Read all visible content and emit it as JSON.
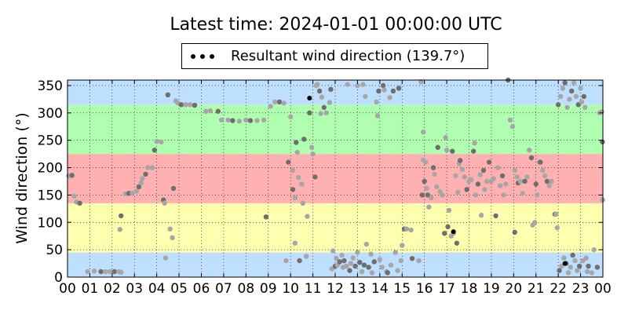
{
  "chart_data": {
    "type": "scatter",
    "title": "Latest time: 2024-01-01 00:00:00 UTC",
    "xlabel": "",
    "ylabel": "Wind direction (°)",
    "xlim": [
      0,
      24
    ],
    "ylim": [
      0,
      360
    ],
    "grid": true,
    "legend": {
      "placement": "top-center",
      "label": "Resultant wind direction (139.7°)",
      "marker": "black dots"
    },
    "x_ticks": [
      0,
      1,
      2,
      3,
      4,
      5,
      6,
      7,
      8,
      9,
      10,
      11,
      12,
      13,
      14,
      15,
      16,
      17,
      18,
      19,
      20,
      21,
      22,
      23,
      24
    ],
    "x_tick_labels": [
      "00",
      "01",
      "02",
      "03",
      "04",
      "05",
      "06",
      "07",
      "08",
      "09",
      "10",
      "11",
      "12",
      "13",
      "14",
      "15",
      "16",
      "17",
      "18",
      "19",
      "20",
      "21",
      "22",
      "23",
      "00"
    ],
    "y_ticks": [
      0,
      50,
      100,
      150,
      200,
      250,
      300,
      350
    ],
    "y_tick_labels": [
      "0",
      "50",
      "100",
      "150",
      "200",
      "250",
      "300",
      "350"
    ],
    "bands": [
      {
        "from": 0,
        "to": 45,
        "color": "#bfdfff"
      },
      {
        "from": 45,
        "to": 135,
        "color": "#ffffb0"
      },
      {
        "from": 135,
        "to": 225,
        "color": "#ffb0b0"
      },
      {
        "from": 225,
        "to": 315,
        "color": "#b0ffb0"
      },
      {
        "from": 315,
        "to": 360,
        "color": "#bfdfff"
      }
    ],
    "point_colors": {
      "light": "#a6a6a6",
      "dark": "#6e6e6e"
    },
    "series": [
      {
        "points": [
          [
            0.05,
            185
          ],
          [
            0.2,
            186
          ],
          [
            0.3,
            148
          ],
          [
            0.4,
            137
          ],
          [
            0.55,
            135
          ],
          [
            0.9,
            10
          ],
          [
            1.2,
            11
          ],
          [
            1.5,
            10
          ],
          [
            1.7,
            10
          ],
          [
            1.9,
            10
          ],
          [
            2.1,
            10
          ],
          [
            2.3,
            10
          ],
          [
            2.4,
            9
          ],
          [
            2.4,
            112
          ],
          [
            2.35,
            87
          ],
          [
            2.6,
            152
          ],
          [
            2.75,
            153
          ],
          [
            2.9,
            153
          ],
          [
            3.1,
            157
          ],
          [
            3.2,
            165
          ],
          [
            3.3,
            172
          ],
          [
            3.35,
            180
          ],
          [
            3.5,
            188
          ],
          [
            3.6,
            200
          ],
          [
            3.8,
            200
          ],
          [
            3.9,
            232
          ],
          [
            4.0,
            248
          ],
          [
            4.2,
            247
          ],
          [
            4.3,
            141
          ],
          [
            4.35,
            135
          ],
          [
            4.4,
            35
          ],
          [
            4.5,
            333
          ],
          [
            4.6,
            88
          ],
          [
            4.7,
            72
          ],
          [
            4.75,
            162
          ],
          [
            4.85,
            322
          ],
          [
            4.95,
            318
          ],
          [
            5.1,
            315
          ],
          [
            5.3,
            315
          ],
          [
            5.5,
            315
          ],
          [
            5.7,
            314
          ],
          [
            6.2,
            303
          ],
          [
            6.4,
            304
          ],
          [
            6.75,
            303
          ],
          [
            6.9,
            287
          ],
          [
            7.2,
            287
          ],
          [
            7.4,
            286
          ],
          [
            7.7,
            285
          ],
          [
            8.0,
            287
          ],
          [
            8.2,
            286
          ],
          [
            8.5,
            286
          ],
          [
            8.8,
            287
          ],
          [
            8.9,
            110
          ],
          [
            9.1,
            312
          ],
          [
            9.3,
            320
          ],
          [
            9.5,
            320
          ],
          [
            9.7,
            318
          ],
          [
            9.8,
            30
          ],
          [
            9.9,
            210
          ],
          [
            10.0,
            293
          ],
          [
            10.1,
            195
          ],
          [
            10.1,
            160
          ],
          [
            10.2,
            145
          ],
          [
            10.2,
            62
          ],
          [
            10.25,
            246
          ],
          [
            10.3,
            228
          ],
          [
            10.35,
            182
          ],
          [
            10.4,
            30
          ],
          [
            10.5,
            170
          ],
          [
            10.55,
            135
          ],
          [
            10.6,
            252
          ],
          [
            10.7,
            38
          ],
          [
            10.75,
            111
          ],
          [
            10.85,
            300
          ],
          [
            10.95,
            237
          ],
          [
            11.0,
            225
          ],
          [
            11.1,
            183
          ],
          [
            11.15,
            350
          ],
          [
            11.2,
            352
          ],
          [
            11.3,
            340
          ],
          [
            11.35,
            299
          ],
          [
            11.4,
            329
          ],
          [
            11.5,
            310
          ],
          [
            11.6,
            300
          ],
          [
            11.75,
            319
          ],
          [
            11.8,
            343
          ],
          [
            11.85,
            15
          ],
          [
            11.9,
            48
          ],
          [
            12.0,
            20
          ],
          [
            12.05,
            34
          ],
          [
            12.1,
            22
          ],
          [
            12.2,
            28
          ],
          [
            12.3,
            40
          ],
          [
            12.35,
            18
          ],
          [
            12.4,
            30
          ],
          [
            12.5,
            20
          ],
          [
            12.55,
            352
          ],
          [
            12.65,
            12
          ],
          [
            12.7,
            25
          ],
          [
            12.8,
            35
          ],
          [
            12.9,
            20
          ],
          [
            13.0,
            45
          ],
          [
            13.0,
            350
          ],
          [
            13.1,
            27
          ],
          [
            13.2,
            10
          ],
          [
            13.25,
            352
          ],
          [
            13.3,
            22
          ],
          [
            13.35,
            330
          ],
          [
            13.4,
            60
          ],
          [
            13.5,
            18
          ],
          [
            13.6,
            42
          ],
          [
            13.65,
            8
          ],
          [
            13.75,
            28
          ],
          [
            13.85,
            320
          ],
          [
            13.9,
            295
          ],
          [
            13.95,
            340
          ],
          [
            14.0,
            32
          ],
          [
            14.1,
            18
          ],
          [
            14.15,
            350
          ],
          [
            14.2,
            342
          ],
          [
            14.3,
            10
          ],
          [
            14.35,
            8
          ],
          [
            14.45,
            328
          ],
          [
            14.5,
            22
          ],
          [
            14.6,
            340
          ],
          [
            14.7,
            45
          ],
          [
            14.8,
            12
          ],
          [
            14.85,
            345
          ],
          [
            14.95,
            30
          ],
          [
            15.0,
            58
          ],
          [
            15.1,
            88
          ],
          [
            15.2,
            88
          ],
          [
            15.4,
            86
          ],
          [
            15.45,
            34
          ],
          [
            15.75,
            30
          ],
          [
            15.85,
            357
          ],
          [
            15.9,
            150
          ],
          [
            15.95,
            214
          ],
          [
            15.95,
            265
          ],
          [
            16.0,
            175
          ],
          [
            16.05,
            210
          ],
          [
            16.1,
            162
          ],
          [
            16.15,
            150
          ],
          [
            16.2,
            128
          ],
          [
            16.3,
            145
          ],
          [
            16.4,
            200
          ],
          [
            16.45,
            188
          ],
          [
            16.55,
            165
          ],
          [
            16.6,
            237
          ],
          [
            16.7,
            156
          ],
          [
            16.8,
            150
          ],
          [
            16.9,
            80
          ],
          [
            16.95,
            255
          ],
          [
            17.0,
            232
          ],
          [
            17.05,
            92
          ],
          [
            17.1,
            122
          ],
          [
            17.2,
            75
          ],
          [
            17.25,
            230
          ],
          [
            17.3,
            80
          ],
          [
            17.4,
            185
          ],
          [
            17.45,
            62
          ],
          [
            17.5,
            155
          ],
          [
            17.55,
            207
          ],
          [
            17.6,
            213
          ],
          [
            17.7,
            197
          ],
          [
            17.8,
            183
          ],
          [
            17.9,
            160
          ],
          [
            18.0,
            175
          ],
          [
            18.1,
            178
          ],
          [
            18.2,
            230
          ],
          [
            18.25,
            245
          ],
          [
            18.3,
            150
          ],
          [
            18.4,
            170
          ],
          [
            18.5,
            187
          ],
          [
            18.55,
            113
          ],
          [
            18.65,
            195
          ],
          [
            18.7,
            160
          ],
          [
            18.8,
            175
          ],
          [
            18.9,
            210
          ],
          [
            19.0,
            175
          ],
          [
            19.1,
            180
          ],
          [
            19.2,
            112
          ],
          [
            19.3,
            200
          ],
          [
            19.4,
            167
          ],
          [
            19.5,
            185
          ],
          [
            19.55,
            150
          ],
          [
            19.65,
            170
          ],
          [
            19.75,
            360
          ],
          [
            19.85,
            287
          ],
          [
            19.95,
            275
          ],
          [
            20.05,
            82
          ],
          [
            20.05,
            195
          ],
          [
            20.15,
            183
          ],
          [
            20.2,
            172
          ],
          [
            20.3,
            175
          ],
          [
            20.4,
            153
          ],
          [
            20.5,
            175
          ],
          [
            20.6,
            183
          ],
          [
            20.7,
            232
          ],
          [
            20.8,
            218
          ],
          [
            20.85,
            95
          ],
          [
            20.95,
            100
          ],
          [
            21.0,
            170
          ],
          [
            21.05,
            150
          ],
          [
            21.15,
            210
          ],
          [
            21.2,
            210
          ],
          [
            21.3,
            195
          ],
          [
            21.4,
            185
          ],
          [
            21.5,
            175
          ],
          [
            21.6,
            167
          ],
          [
            21.7,
            175
          ],
          [
            21.85,
            115
          ],
          [
            21.9,
            115
          ],
          [
            21.95,
            90
          ],
          [
            22.0,
            315
          ],
          [
            22.1,
            330
          ],
          [
            22.2,
            345
          ],
          [
            22.3,
            355
          ],
          [
            22.4,
            310
          ],
          [
            22.5,
            325
          ],
          [
            22.6,
            340
          ],
          [
            22.7,
            355
          ],
          [
            22.8,
            330
          ],
          [
            22.9,
            315
          ],
          [
            23.0,
            345
          ],
          [
            23.05,
            320
          ],
          [
            23.15,
            330
          ],
          [
            23.2,
            310
          ],
          [
            23.3,
            10
          ],
          [
            22.05,
            12
          ],
          [
            22.15,
            20
          ],
          [
            22.25,
            35
          ],
          [
            22.35,
            25
          ],
          [
            22.45,
            8
          ],
          [
            22.55,
            18
          ],
          [
            22.65,
            40
          ],
          [
            22.75,
            30
          ],
          [
            22.85,
            12
          ],
          [
            22.95,
            20
          ],
          [
            23.1,
            30
          ],
          [
            23.25,
            35
          ],
          [
            23.35,
            20
          ],
          [
            23.5,
            8
          ],
          [
            23.6,
            50
          ],
          [
            23.75,
            18
          ],
          [
            23.85,
            300
          ],
          [
            23.95,
            302
          ],
          [
            23.98,
            247
          ],
          [
            23.99,
            141
          ]
        ]
      },
      {
        "name": "Resultant wind direction (139.7°)",
        "color": "#000000",
        "points": [
          [
            10.85,
            327
          ],
          [
            17.3,
            83
          ],
          [
            22.3,
            25
          ]
        ]
      }
    ]
  }
}
